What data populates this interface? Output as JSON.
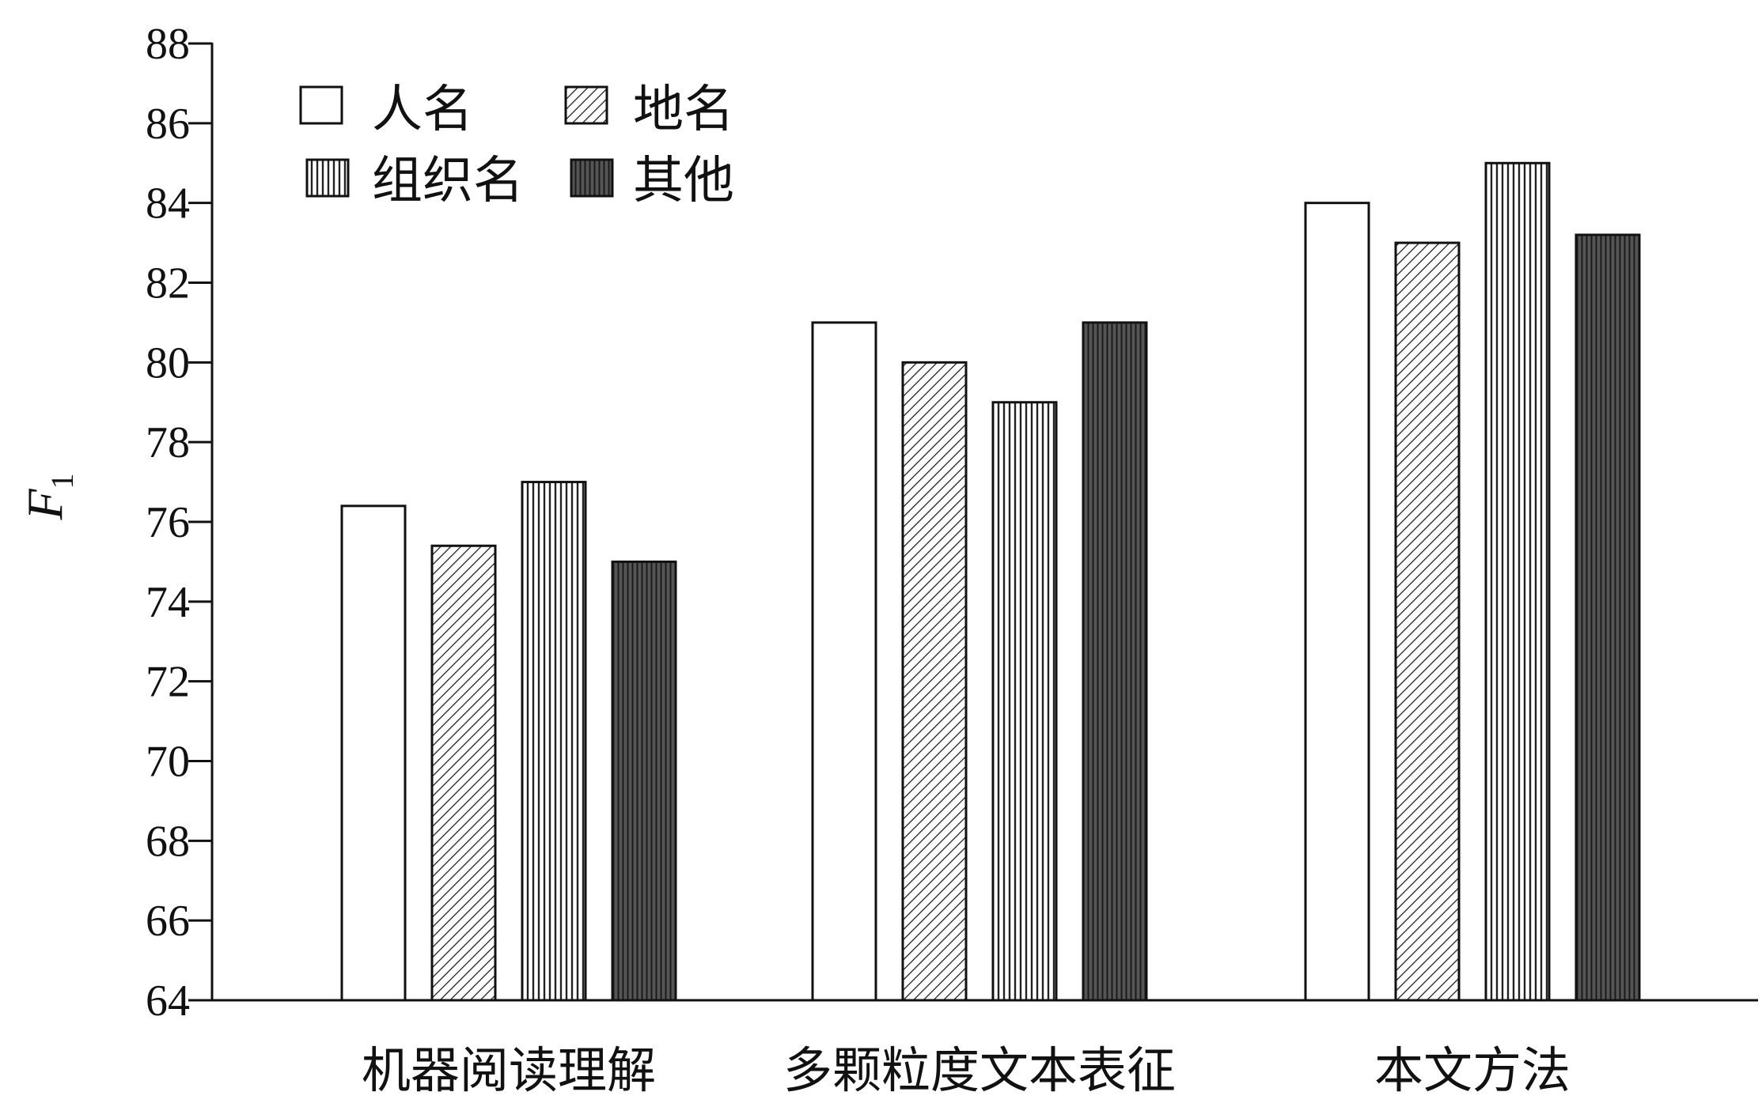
{
  "chart_data": {
    "type": "bar",
    "title": "",
    "ylabel": "F",
    "ylabel_subscript": "1",
    "xlabel": "",
    "categories": [
      "机器阅读理解",
      "多颗粒度文本表征",
      "本文方法"
    ],
    "series": [
      {
        "name": "人名",
        "pattern": "white",
        "values": [
          76.4,
          81.0,
          84.0
        ]
      },
      {
        "name": "地名",
        "pattern": "diagonal-hatch",
        "values": [
          75.4,
          80.0,
          83.0
        ]
      },
      {
        "name": "组织名",
        "pattern": "vertical-hatch",
        "values": [
          77.0,
          79.0,
          85.0
        ]
      },
      {
        "name": "其他",
        "pattern": "dark-vertical-hatch",
        "values": [
          75.0,
          81.0,
          83.2
        ]
      }
    ],
    "ylim": [
      64,
      88
    ],
    "yticks": [
      "64",
      "66",
      "68",
      "70",
      "72",
      "74",
      "76",
      "78",
      "80",
      "82",
      "84",
      "86",
      "88"
    ],
    "grid": false,
    "legend_position": "top-left",
    "colors": {
      "axis": "#111111",
      "white_fill": "#ffffff",
      "dark_fill": "#4a4a4a",
      "stroke": "#111111"
    }
  }
}
